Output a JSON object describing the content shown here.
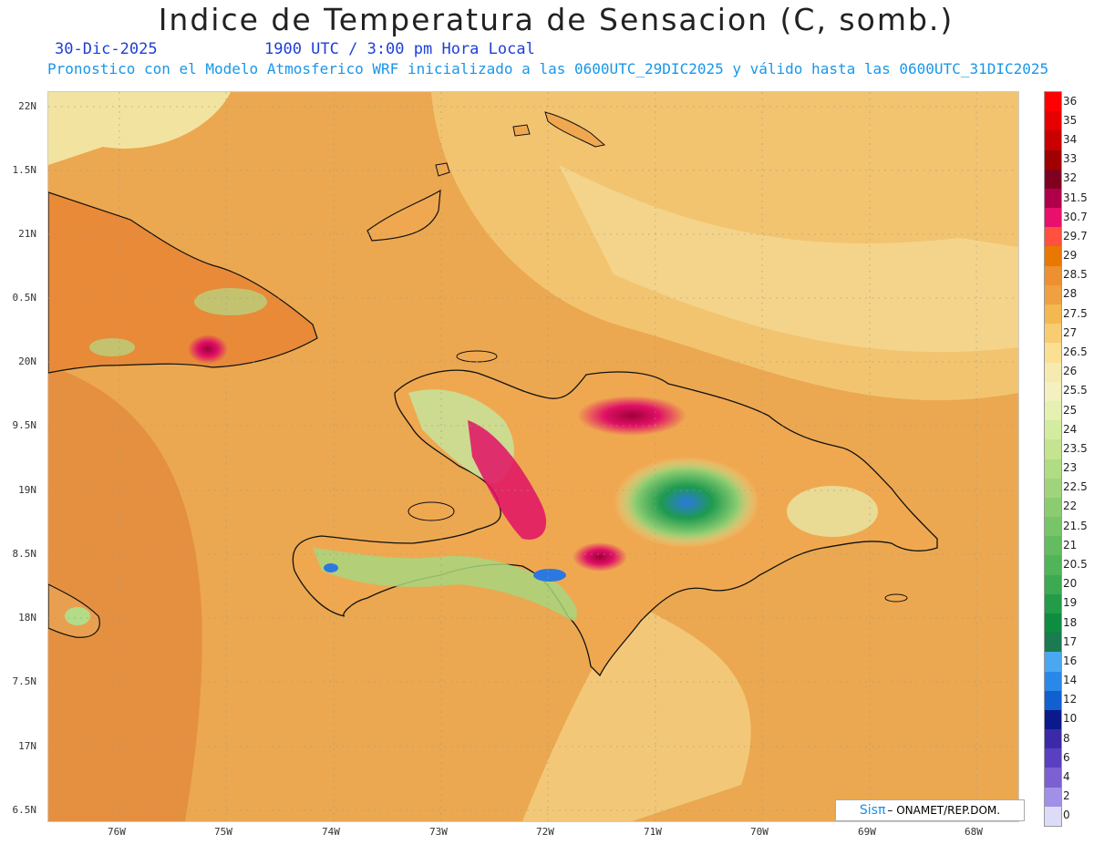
{
  "header": {
    "title": "Indice de Temperatura de Sensacion (C, somb.)",
    "date": "30-Dic-2025",
    "time": "1900 UTC / 3:00 pm Hora Local",
    "model": "Pronostico con el Modelo Atmosferico WRF inicializado a las 0600UTC_29DIC2025 y válido hasta las  0600UTC_31DIC2025"
  },
  "axes": {
    "lat_labels": [
      "22N",
      "1.5N",
      "21N",
      "0.5N",
      "20N",
      "9.5N",
      "19N",
      "8.5N",
      "18N",
      "7.5N",
      "17N",
      "6.5N"
    ],
    "lon_labels": [
      "76W",
      "75W",
      "74W",
      "73W",
      "72W",
      "71W",
      "70W",
      "69W",
      "68W"
    ]
  },
  "colorbar": {
    "labels": [
      "36",
      "35",
      "34",
      "33",
      "32",
      "31.5",
      "30.7",
      "29.7",
      "29",
      "28.5",
      "28",
      "27.5",
      "27",
      "26.5",
      "26",
      "25.5",
      "25",
      "24",
      "23.5",
      "23",
      "22.5",
      "22",
      "21.5",
      "21",
      "20.5",
      "20",
      "19",
      "18",
      "17",
      "16",
      "14",
      "12",
      "10",
      "8",
      "6",
      "4",
      "2",
      "0"
    ],
    "colors": [
      "#ff0000",
      "#e60000",
      "#c80000",
      "#a00000",
      "#800020",
      "#b0004a",
      "#e8106a",
      "#ff5040",
      "#e87800",
      "#ee9030",
      "#f0a040",
      "#f4b850",
      "#f8cc70",
      "#fae090",
      "#f6eab0",
      "#f4f0c0",
      "#e6f0b0",
      "#d4eca0",
      "#c4e490",
      "#b0dc84",
      "#a0d47c",
      "#8ccc70",
      "#78c468",
      "#64bc60",
      "#50b458",
      "#3caa50",
      "#229c48",
      "#0e8c40",
      "#1a7a50",
      "#4aa8f0",
      "#2a88e8",
      "#1060d0",
      "#0a1a8a",
      "#3a2aa8",
      "#5a40c0",
      "#7a60d0",
      "#a090e8",
      "#dcdcf8"
    ]
  },
  "credit": {
    "logo": "Sisπ",
    "text": "– ONAMET/REP.DOM."
  }
}
